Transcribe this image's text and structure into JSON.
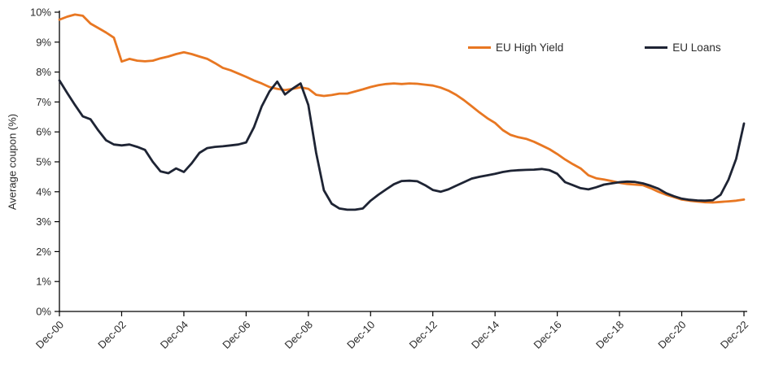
{
  "page": {
    "background": "#ffffff"
  },
  "chart_data": {
    "type": "line",
    "title": "",
    "xlabel": "",
    "ylabel": "Average coupon (%)",
    "ylim": [
      0,
      10
    ],
    "grid": false,
    "legend_position": "inside-top-right",
    "y_tick_labels": [
      "0%",
      "1%",
      "2%",
      "3%",
      "4%",
      "5%",
      "6%",
      "7%",
      "8%",
      "9%",
      "10%"
    ],
    "x_tick_labels": [
      "Dec-00",
      "Dec-02",
      "Dec-04",
      "Dec-06",
      "Dec-08",
      "Dec-10",
      "Dec-12",
      "Dec-14",
      "Dec-16",
      "Dec-18",
      "Dec-20",
      "Dec-22"
    ],
    "x_tick_positions_years": [
      0,
      2,
      4,
      6,
      8,
      10,
      12,
      14,
      16,
      18,
      20,
      22
    ],
    "x_start": "Dec-2000",
    "x_step_years": 0.25,
    "series": [
      {
        "name": "EU High Yield",
        "color": "#E87722",
        "values": [
          9.75,
          9.85,
          9.92,
          9.88,
          9.62,
          9.47,
          9.32,
          9.15,
          8.35,
          8.44,
          8.38,
          8.36,
          8.38,
          8.46,
          8.52,
          8.6,
          8.66,
          8.6,
          8.52,
          8.44,
          8.3,
          8.14,
          8.06,
          7.95,
          7.84,
          7.72,
          7.62,
          7.5,
          7.44,
          7.4,
          7.44,
          7.49,
          7.44,
          7.24,
          7.2,
          7.23,
          7.28,
          7.28,
          7.35,
          7.42,
          7.5,
          7.56,
          7.6,
          7.62,
          7.6,
          7.62,
          7.61,
          7.58,
          7.55,
          7.48,
          7.38,
          7.24,
          7.06,
          6.86,
          6.65,
          6.46,
          6.3,
          6.06,
          5.9,
          5.82,
          5.77,
          5.67,
          5.55,
          5.42,
          5.26,
          5.08,
          4.92,
          4.78,
          4.55,
          4.45,
          4.41,
          4.36,
          4.3,
          4.26,
          4.24,
          4.22,
          4.12,
          4.0,
          3.9,
          3.82,
          3.74,
          3.7,
          3.67,
          3.65,
          3.64,
          3.66,
          3.68,
          3.7,
          3.74
        ]
      },
      {
        "name": "EU Loans",
        "color": "#1E2434",
        "values": [
          7.72,
          7.3,
          6.9,
          6.52,
          6.42,
          6.05,
          5.72,
          5.58,
          5.55,
          5.58,
          5.5,
          5.4,
          5.0,
          4.68,
          4.62,
          4.78,
          4.66,
          4.95,
          5.3,
          5.46,
          5.5,
          5.52,
          5.55,
          5.58,
          5.65,
          6.15,
          6.85,
          7.35,
          7.68,
          7.25,
          7.45,
          7.62,
          6.9,
          5.3,
          4.05,
          3.6,
          3.44,
          3.4,
          3.4,
          3.44,
          3.7,
          3.9,
          4.08,
          4.25,
          4.36,
          4.37,
          4.35,
          4.22,
          4.06,
          4.0,
          4.08,
          4.2,
          4.32,
          4.44,
          4.5,
          4.55,
          4.6,
          4.66,
          4.7,
          4.72,
          4.73,
          4.74,
          4.76,
          4.72,
          4.6,
          4.32,
          4.22,
          4.12,
          4.08,
          4.15,
          4.24,
          4.28,
          4.32,
          4.34,
          4.33,
          4.28,
          4.2,
          4.1,
          3.95,
          3.85,
          3.77,
          3.73,
          3.71,
          3.7,
          3.72,
          3.9,
          4.4,
          5.1,
          6.28
        ]
      }
    ]
  }
}
